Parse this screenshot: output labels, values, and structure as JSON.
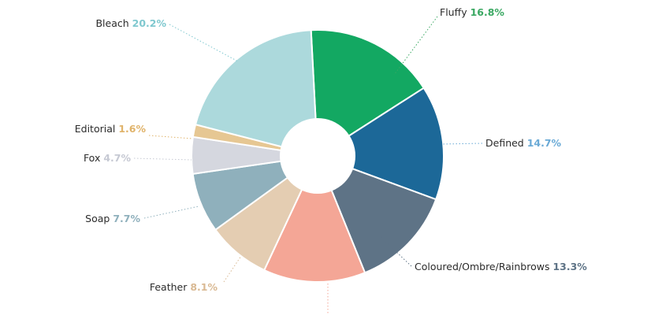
{
  "chart_data": {
    "type": "pie",
    "donut": true,
    "legend": "none",
    "slices": [
      {
        "label": "Fluffy",
        "value": 16.8,
        "value_label": "16.8%",
        "color": "#13a862",
        "label_color": "#3aa862"
      },
      {
        "label": "Defined",
        "value": 14.7,
        "value_label": "14.7%",
        "color": "#1c6898",
        "label_color": "#6aaad6"
      },
      {
        "label": "Coloured/Ombre/Rainbrows",
        "value": 13.3,
        "value_label": "13.3%",
        "color": "#5e7386",
        "label_color": "#5e7386"
      },
      {
        "label": "",
        "value": 13.1,
        "value_label": "",
        "color": "#f4a696",
        "label_color": "#f4a696"
      },
      {
        "label": "Feather",
        "value": 8.1,
        "value_label": "8.1%",
        "color": "#e4cdb2",
        "label_color": "#d9b993"
      },
      {
        "label": "Soap",
        "value": 7.7,
        "value_label": "7.7%",
        "color": "#8fb0bc",
        "label_color": "#8fb0bc"
      },
      {
        "label": "Fox",
        "value": 4.7,
        "value_label": "4.7%",
        "color": "#d5d7df",
        "label_color": "#c6c9d3"
      },
      {
        "label": "Editorial",
        "value": 1.6,
        "value_label": "1.6%",
        "color": "#e6c793",
        "label_color": "#e0b36a"
      },
      {
        "label": "Bleach",
        "value": 20.2,
        "value_label": "20.2%",
        "color": "#acd9dc",
        "label_color": "#7fc8cf"
      }
    ]
  }
}
